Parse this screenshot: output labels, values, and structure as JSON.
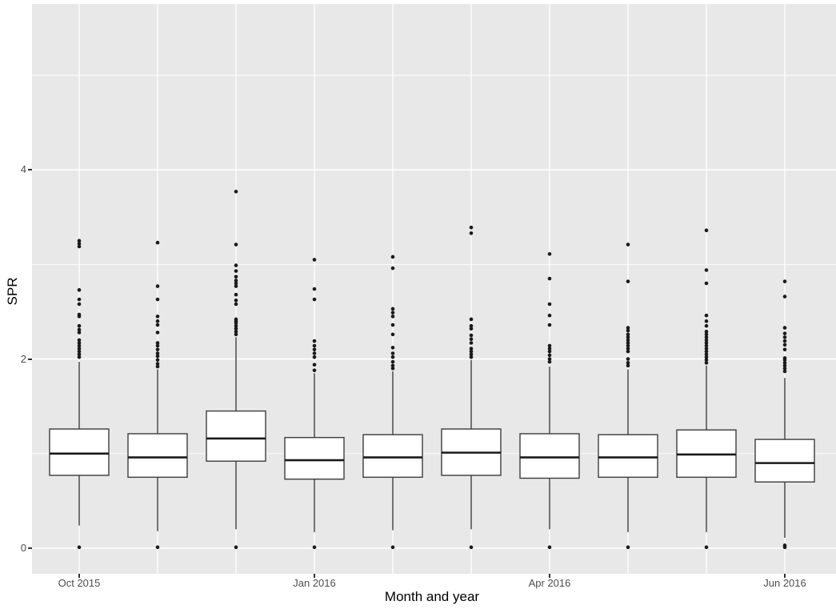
{
  "chart_data": {
    "type": "boxplot",
    "title": "",
    "xlabel": "Month and year",
    "ylabel": "SPR",
    "legend": "none",
    "grid": "on",
    "panel_bg_color": "#E8E8E8",
    "grid_color": "#FFFFFF",
    "box_fill_color": "#FFFFFF",
    "box_stroke_color": "#3C3C3C",
    "median_color": "#1A1A1A",
    "outlier_color": "#1A1A1A",
    "tick_text_color": "#4D4D4D",
    "axis_title_color": "#000000",
    "ylim": [
      -0.27,
      5.75
    ],
    "y_major_ticks": [
      0,
      2,
      4
    ],
    "y_minor_gridlines": [
      1,
      3,
      5
    ],
    "x_ticks": [
      {
        "pos": 1,
        "label": "Oct 2015"
      },
      {
        "pos": 4,
        "label": "Jan 2016"
      },
      {
        "pos": 7,
        "label": "Apr 2016"
      },
      {
        "pos": 10,
        "label": "Jun 2016"
      }
    ],
    "boxes": [
      {
        "pos": 1,
        "whisker_low": 0.24,
        "q1": 0.77,
        "median": 1.0,
        "q3": 1.26,
        "whisker_high": 1.97,
        "outliers": [
          0.01,
          2.02,
          2.05,
          2.08,
          2.11,
          2.14,
          2.17,
          2.2,
          2.28,
          2.31,
          2.35,
          2.45,
          2.47,
          2.58,
          2.63,
          2.73,
          3.19,
          3.22,
          3.25
        ]
      },
      {
        "pos": 2,
        "whisker_low": 0.18,
        "q1": 0.75,
        "median": 0.96,
        "q3": 1.21,
        "whisker_high": 1.89,
        "outliers": [
          0.01,
          1.92,
          1.95,
          1.99,
          2.03,
          2.06,
          2.1,
          2.14,
          2.17,
          2.28,
          2.36,
          2.4,
          2.45,
          2.63,
          2.77,
          3.23
        ]
      },
      {
        "pos": 3,
        "whisker_low": 0.2,
        "q1": 0.92,
        "median": 1.16,
        "q3": 1.45,
        "whisker_high": 2.23,
        "outliers": [
          0.01,
          2.26,
          2.29,
          2.32,
          2.35,
          2.38,
          2.4,
          2.42,
          2.58,
          2.62,
          2.68,
          2.77,
          2.8,
          2.83,
          2.87,
          2.93,
          2.99,
          3.21,
          3.77
        ]
      },
      {
        "pos": 4,
        "whisker_low": 0.17,
        "q1": 0.73,
        "median": 0.93,
        "q3": 1.17,
        "whisker_high": 1.85,
        "outliers": [
          0.01,
          1.88,
          1.94,
          2.02,
          2.06,
          2.1,
          2.14,
          2.19,
          2.63,
          2.74,
          3.05
        ]
      },
      {
        "pos": 5,
        "whisker_low": 0.19,
        "q1": 0.75,
        "median": 0.96,
        "q3": 1.2,
        "whisker_high": 1.87,
        "outliers": [
          0.01,
          1.9,
          1.93,
          1.97,
          2.02,
          2.06,
          2.12,
          2.26,
          2.36,
          2.45,
          2.49,
          2.53,
          2.96,
          3.08
        ]
      },
      {
        "pos": 6,
        "whisker_low": 0.2,
        "q1": 0.77,
        "median": 1.01,
        "q3": 1.26,
        "whisker_high": 1.99,
        "outliers": [
          0.01,
          2.02,
          2.05,
          2.08,
          2.11,
          2.17,
          2.21,
          2.25,
          2.32,
          2.35,
          2.42,
          3.33,
          3.39
        ]
      },
      {
        "pos": 7,
        "whisker_low": 0.2,
        "q1": 0.74,
        "median": 0.96,
        "q3": 1.21,
        "whisker_high": 1.92,
        "outliers": [
          0.01,
          1.97,
          2.0,
          2.04,
          2.08,
          2.11,
          2.14,
          2.36,
          2.46,
          2.58,
          2.85,
          3.11
        ]
      },
      {
        "pos": 8,
        "whisker_low": 0.17,
        "q1": 0.75,
        "median": 0.96,
        "q3": 1.2,
        "whisker_high": 1.89,
        "outliers": [
          0.01,
          1.93,
          1.96,
          2.0,
          2.08,
          2.11,
          2.14,
          2.17,
          2.2,
          2.23,
          2.26,
          2.3,
          2.33,
          2.82,
          3.21
        ]
      },
      {
        "pos": 9,
        "whisker_low": 0.17,
        "q1": 0.75,
        "median": 0.99,
        "q3": 1.25,
        "whisker_high": 1.93,
        "outliers": [
          0.01,
          1.96,
          1.99,
          2.02,
          2.05,
          2.08,
          2.11,
          2.14,
          2.17,
          2.2,
          2.23,
          2.26,
          2.29,
          2.35,
          2.4,
          2.46,
          2.8,
          2.94,
          3.36
        ]
      },
      {
        "pos": 10,
        "whisker_low": 0.11,
        "q1": 0.7,
        "median": 0.9,
        "q3": 1.15,
        "whisker_high": 1.8,
        "outliers": [
          0.01,
          0.03,
          1.87,
          1.9,
          1.93,
          1.96,
          1.99,
          2.01,
          2.1,
          2.15,
          2.19,
          2.23,
          2.27,
          2.33,
          2.66,
          2.82
        ]
      }
    ]
  }
}
